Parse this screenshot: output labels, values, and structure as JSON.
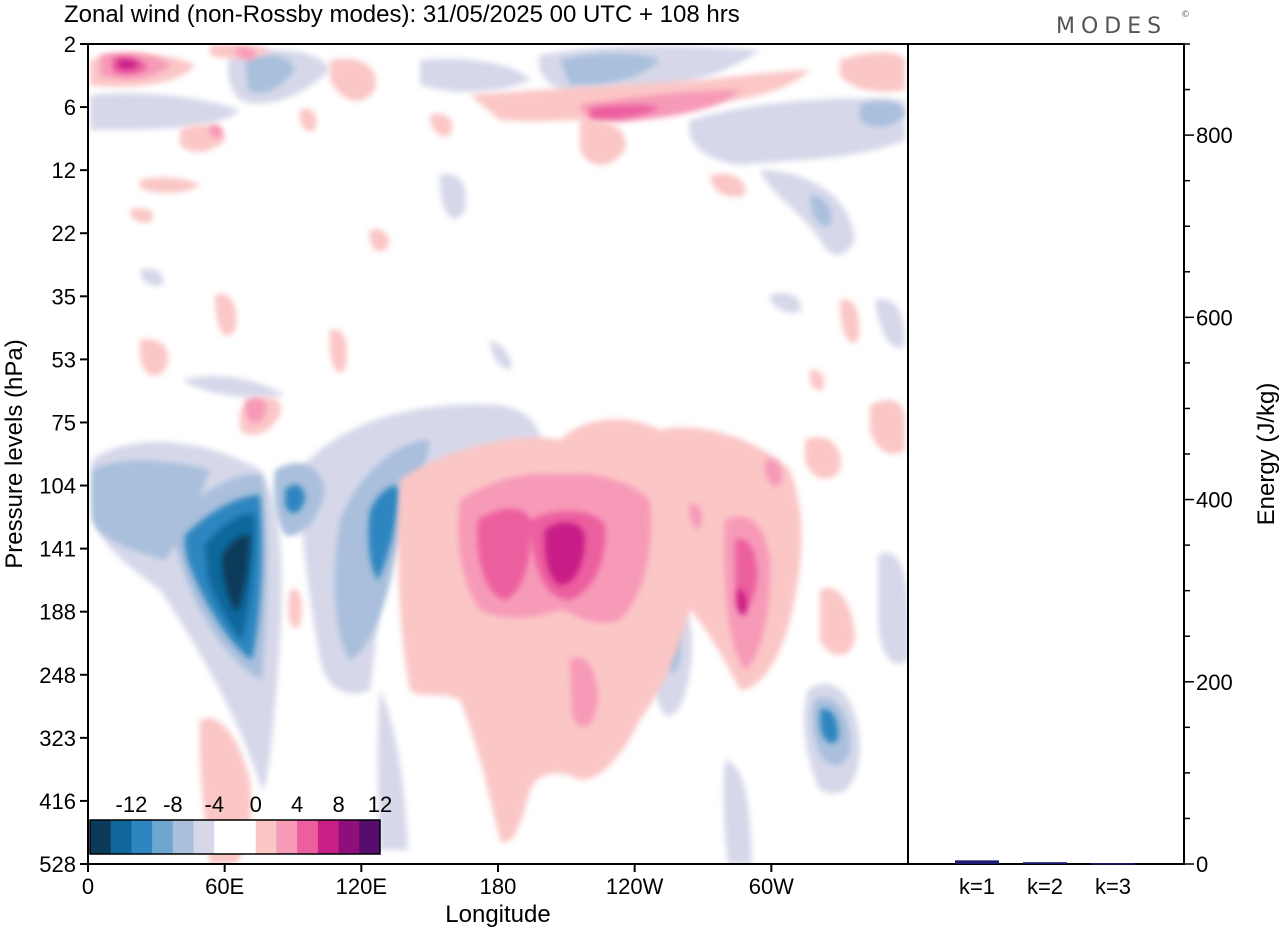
{
  "title": "Zonal wind (non-Rossby modes):  31/05/2025  00 UTC  + 108 hrs",
  "logo": "MODES",
  "logo_mark": "©",
  "chart_data": [
    {
      "type": "heatmap",
      "xlabel": "Longitude",
      "ylabel": "Pressure levels (hPa)",
      "x_ticks": [
        "0",
        "60E",
        "120E",
        "180",
        "120W",
        "60W"
      ],
      "x_tick_values": [
        0,
        60,
        120,
        180,
        240,
        300
      ],
      "xlim": [
        0,
        360
      ],
      "y_ticks": [
        "2",
        "6",
        "12",
        "22",
        "35",
        "53",
        "75",
        "104",
        "141",
        "188",
        "248",
        "323",
        "416",
        "528"
      ],
      "y_scale": "model levels (equally spaced labels)",
      "colorbar": {
        "tick_labels": [
          "-12",
          "-8",
          "-4",
          "0",
          "4",
          "8",
          "12"
        ],
        "colors": [
          "#0b3a5a",
          "#10679b",
          "#2d86c0",
          "#6ea6d0",
          "#a9bfdc",
          "#d6d8ea",
          "#ffffff",
          "#ffffff",
          "#fbc6c6",
          "#f79ab8",
          "#ec5f9f",
          "#c81f86",
          "#8e0f7a",
          "#560d6e"
        ],
        "levels": [
          -14,
          -12,
          -10,
          -8,
          -6,
          -4,
          -2,
          0,
          2,
          4,
          6,
          8,
          10,
          12,
          14
        ]
      },
      "features": [
        {
          "lon": 62,
          "level": 8.9,
          "value": -14,
          "description": "strong negative core"
        },
        {
          "lon": 127,
          "level": 8.6,
          "value": -8
        },
        {
          "lon": 20,
          "level": 0.35,
          "value": 8
        },
        {
          "lon": 198,
          "level": 8.4,
          "value": 10
        },
        {
          "lon": 172,
          "level": 8.6,
          "value": 6
        },
        {
          "lon": 284,
          "level": 9.3,
          "value": 6
        },
        {
          "lon": 325,
          "level": 11,
          "value": -6
        }
      ]
    },
    {
      "type": "bar",
      "ylabel": "Energy (J/kg)",
      "categories": [
        "k=1",
        "k=2",
        "k=3"
      ],
      "values": [
        4,
        2,
        1
      ],
      "ylim": [
        0,
        900
      ],
      "y_ticks": [
        0,
        200,
        400,
        600,
        800
      ],
      "bar_color": "#1a1a6e"
    }
  ]
}
